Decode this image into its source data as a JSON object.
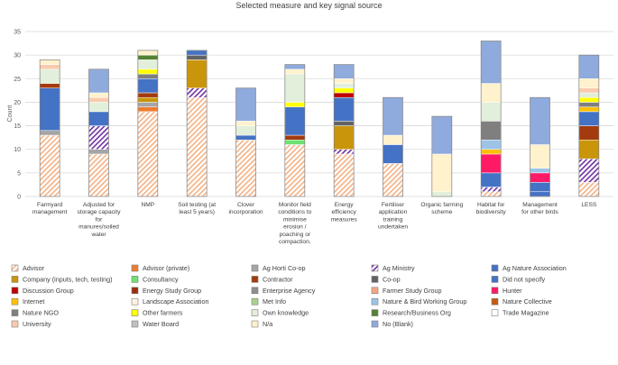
{
  "chart_data": {
    "type": "bar",
    "stacked": true,
    "title": "Selected measure and key signal source",
    "xlabel": "",
    "ylabel": "Count",
    "ylim": [
      0,
      35
    ],
    "yticks": [
      0,
      5,
      10,
      15,
      20,
      25,
      30,
      35
    ],
    "grid": true,
    "legend_position": "bottom",
    "categories": [
      [
        "Farmyard",
        "management"
      ],
      [
        "Adjusted for",
        "storage capacity",
        "for",
        "manures/soiled",
        "water"
      ],
      [
        "NMP"
      ],
      [
        "Soil testing (at",
        "least 5 years)"
      ],
      [
        "Clover",
        "incorporation"
      ],
      [
        "Monitor field",
        "conditions to",
        "minimise",
        "erosion /",
        "poaching or",
        "compaction."
      ],
      [
        "Energy",
        "efficiency",
        "measures"
      ],
      [
        "Fertiliser",
        "application",
        "training",
        "undertaken"
      ],
      [
        "Organic farming",
        "scheme"
      ],
      [
        "Habitat for",
        "biodiversity"
      ],
      [
        "Management",
        "for other birds"
      ],
      [
        "LESS"
      ]
    ],
    "series": [
      {
        "name": "Advisor",
        "color": "#f4b183",
        "pattern": "hatch",
        "values": [
          13,
          9,
          18,
          21,
          12,
          11,
          9,
          7,
          0,
          1,
          0,
          3
        ]
      },
      {
        "name": "Advisor (private)",
        "color": "#ed7d31",
        "values": [
          0,
          0,
          1,
          0,
          0,
          0,
          0,
          0,
          0,
          0,
          0,
          0
        ]
      },
      {
        "name": "Ag Horti Co-op",
        "color": "#a5a5a5",
        "values": [
          1,
          1,
          1,
          0,
          0,
          0,
          0,
          0,
          0,
          0,
          0,
          0
        ]
      },
      {
        "name": "Ag Ministry",
        "color": "#7030a0",
        "pattern": "hatch",
        "values": [
          0,
          5,
          0,
          2,
          0,
          0,
          1,
          0,
          0,
          1,
          0,
          5
        ]
      },
      {
        "name": "Ag Nature Association",
        "color": "#4472c4",
        "values": [
          9,
          0,
          0,
          0,
          0,
          0,
          0,
          0,
          0,
          0,
          1,
          0
        ]
      },
      {
        "name": "Company (inputs, tech, testing)",
        "color": "#c9950a",
        "values": [
          0,
          0,
          1,
          6,
          0,
          0,
          5,
          0,
          0,
          0,
          0,
          4
        ]
      },
      {
        "name": "Consultancy",
        "color": "#70e070",
        "values": [
          0,
          0,
          0,
          0,
          0,
          1,
          0,
          0,
          0,
          0,
          0,
          0
        ]
      },
      {
        "name": "Contractor",
        "color": "#a33b0f",
        "values": [
          1,
          0,
          1,
          0,
          0,
          1,
          0,
          0,
          0,
          0,
          0,
          3
        ]
      },
      {
        "name": "Co-op",
        "color": "#636363",
        "values": [
          0,
          0,
          0,
          1,
          0,
          0,
          1,
          0,
          0,
          0,
          0,
          0
        ]
      },
      {
        "name": "Did not specify",
        "color": "#4472c4",
        "values": [
          0,
          3,
          3,
          1,
          1,
          6,
          5,
          4,
          0,
          3,
          2,
          3
        ]
      },
      {
        "name": "Discussion Group",
        "color": "#c00000",
        "values": [
          0,
          0,
          0,
          0,
          0,
          0,
          1,
          0,
          0,
          0,
          0,
          0
        ]
      },
      {
        "name": "Energy Study Group",
        "color": "#9b2d0f",
        "values": [
          0,
          0,
          0,
          0,
          0,
          0,
          0,
          0,
          0,
          0,
          0,
          0
        ]
      },
      {
        "name": "Enterprise Agency",
        "color": "#8e8e8e",
        "values": [
          0,
          0,
          0,
          0,
          0,
          0,
          0,
          0,
          0,
          0,
          0,
          0
        ]
      },
      {
        "name": "Farmer Study Group",
        "color": "#f4a582",
        "values": [
          0,
          0,
          0,
          0,
          0,
          0,
          0,
          0,
          0,
          0,
          0,
          0
        ]
      },
      {
        "name": "Hunter",
        "color": "#ff1a66",
        "values": [
          0,
          0,
          0,
          0,
          0,
          0,
          0,
          0,
          0,
          4,
          2,
          0
        ]
      },
      {
        "name": "Internet",
        "color": "#ffc000",
        "values": [
          0,
          0,
          0,
          0,
          0,
          0,
          0,
          0,
          0,
          1,
          0,
          1
        ]
      },
      {
        "name": "Landscape Association",
        "color": "#fff2e0",
        "values": [
          0,
          0,
          0,
          0,
          0,
          0,
          0,
          0,
          0,
          0,
          0,
          0
        ]
      },
      {
        "name": "Met Info",
        "color": "#a9d18e",
        "values": [
          0,
          0,
          0,
          0,
          0,
          0,
          0,
          0,
          0,
          0,
          0,
          0
        ]
      },
      {
        "name": "Nature & Bird Working Group",
        "color": "#9dc3e6",
        "values": [
          0,
          0,
          0,
          0,
          0,
          0,
          0,
          0,
          0,
          2,
          1,
          0
        ]
      },
      {
        "name": "Nature Collective",
        "color": "#c55a11",
        "values": [
          0,
          0,
          0,
          0,
          0,
          0,
          0,
          0,
          0,
          0,
          0,
          0
        ]
      },
      {
        "name": "Nature NGO",
        "color": "#7f7f7f",
        "values": [
          0,
          0,
          1,
          0,
          0,
          0,
          0,
          0,
          0,
          4,
          0,
          1
        ]
      },
      {
        "name": "Other farmers",
        "color": "#ffff00",
        "values": [
          0,
          0,
          1,
          0,
          0,
          1,
          1,
          0,
          0,
          0,
          0,
          1
        ]
      },
      {
        "name": "Own knowledge",
        "color": "#e2efda",
        "values": [
          3,
          2,
          2,
          0,
          2,
          6,
          1,
          0,
          1,
          4,
          0,
          1
        ]
      },
      {
        "name": "Research/Business Org",
        "color": "#548235",
        "values": [
          0,
          0,
          1,
          0,
          0,
          0,
          0,
          0,
          0,
          0,
          0,
          0
        ]
      },
      {
        "name": "Trade Magazine",
        "color": "#ffffff",
        "values": [
          0,
          0,
          0,
          0,
          0,
          0,
          0,
          0,
          0,
          0,
          0,
          0
        ]
      },
      {
        "name": "University",
        "color": "#f8cbad",
        "values": [
          1,
          1,
          0,
          0,
          0,
          0,
          0,
          0,
          0,
          0,
          0,
          1
        ]
      },
      {
        "name": "Water Board",
        "color": "#bfbfbf",
        "values": [
          0,
          0,
          0,
          0,
          0,
          0,
          0,
          0,
          0,
          0,
          0,
          0
        ]
      },
      {
        "name": "N/a",
        "color": "#fff2cc",
        "values": [
          1,
          1,
          1,
          0,
          1,
          1,
          1,
          2,
          8,
          4,
          5,
          2
        ]
      },
      {
        "name": "No (Blank)",
        "color": "#8faadc",
        "values": [
          0,
          5,
          0,
          0,
          7,
          1,
          3,
          8,
          8,
          9,
          10,
          5
        ]
      }
    ]
  }
}
